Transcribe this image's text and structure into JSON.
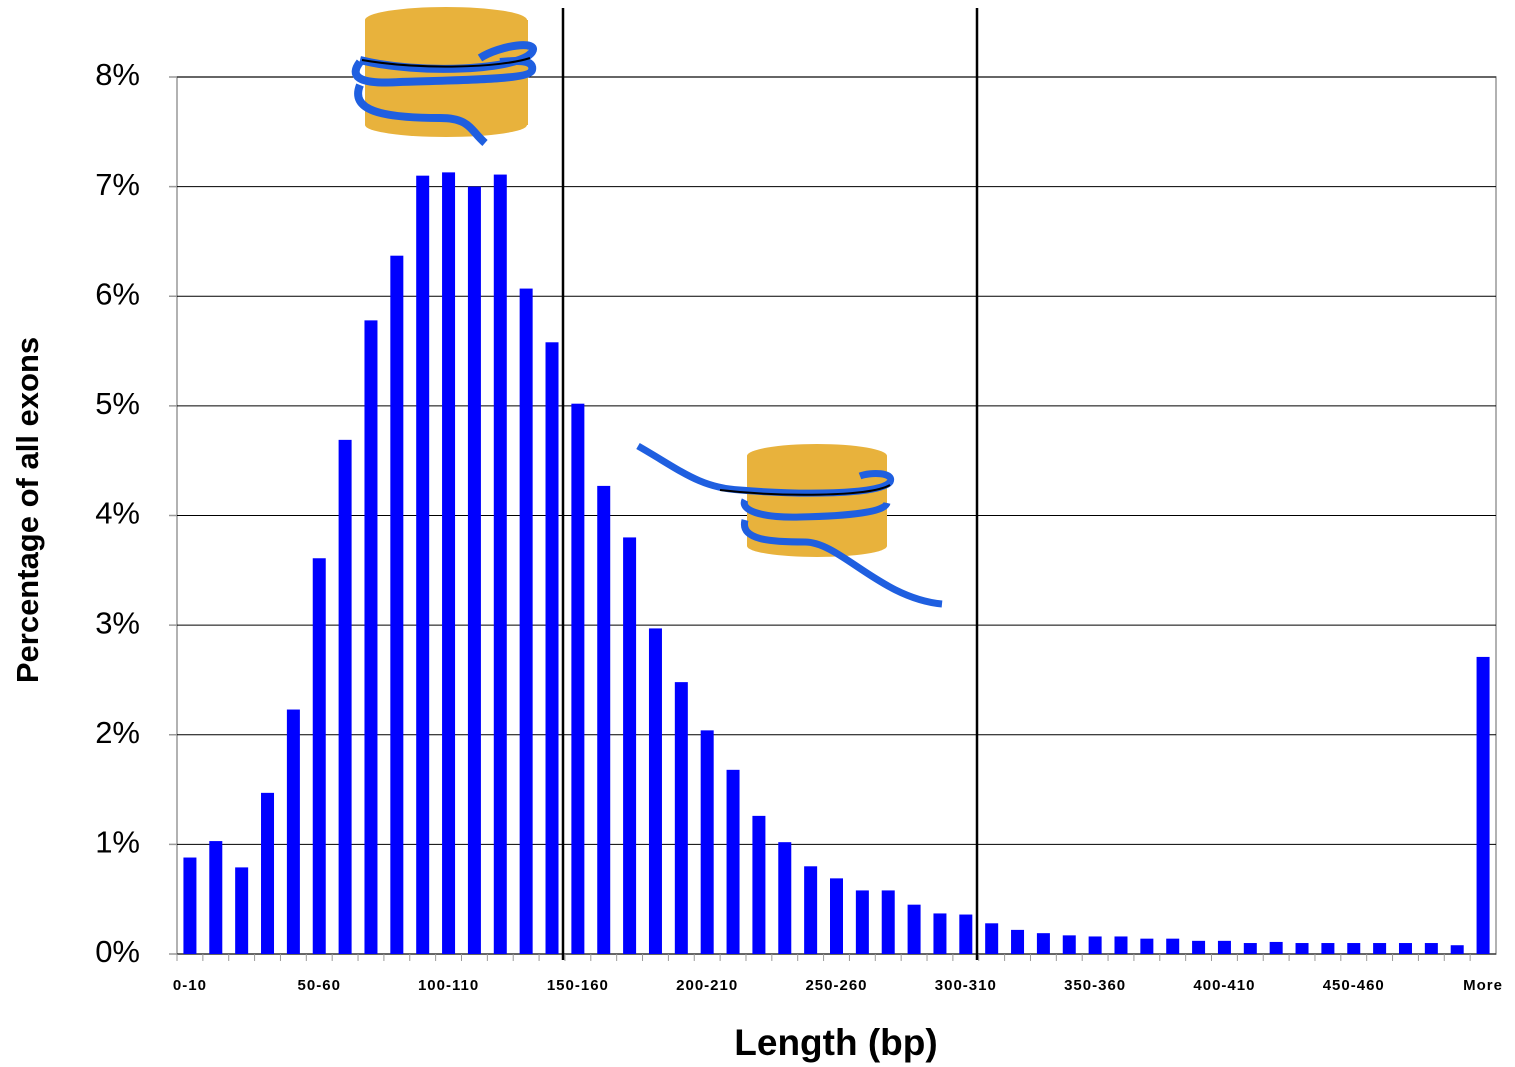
{
  "chart_data": {
    "type": "bar",
    "x_label": "Length (bp)",
    "y_label": "Percentage of all exons",
    "categories": [
      "0-10",
      null,
      null,
      null,
      null,
      "50-60",
      null,
      null,
      null,
      null,
      "100-110",
      null,
      null,
      null,
      null,
      "150-160",
      null,
      null,
      null,
      null,
      "200-210",
      null,
      null,
      null,
      null,
      "250-260",
      null,
      null,
      null,
      null,
      "300-310",
      null,
      null,
      null,
      null,
      "350-360",
      null,
      null,
      null,
      null,
      "400-410",
      null,
      null,
      null,
      null,
      "450-460",
      null,
      null,
      null,
      null,
      "More"
    ],
    "values": [
      0.88,
      1.03,
      0.79,
      1.47,
      2.23,
      3.61,
      4.69,
      5.78,
      6.37,
      7.1,
      7.13,
      7.0,
      7.11,
      6.07,
      5.58,
      5.02,
      4.27,
      3.8,
      2.97,
      2.48,
      2.04,
      1.68,
      1.26,
      1.02,
      0.8,
      0.69,
      0.58,
      0.58,
      0.45,
      0.37,
      0.36,
      0.28,
      0.22,
      0.19,
      0.17,
      0.16,
      0.16,
      0.14,
      0.14,
      0.12,
      0.12,
      0.1,
      0.11,
      0.1,
      0.1,
      0.1,
      0.1,
      0.1,
      0.1,
      0.08,
      2.71
    ],
    "color": "#0000ff",
    "ylim": [
      0,
      8
    ],
    "yticks": [
      {
        "value": 0,
        "label": "0%"
      },
      {
        "value": 1,
        "label": "1%"
      },
      {
        "value": 2,
        "label": "2%"
      },
      {
        "value": 3,
        "label": "3%"
      },
      {
        "value": 4,
        "label": "4%"
      },
      {
        "value": 5,
        "label": "5%"
      },
      {
        "value": 6,
        "label": "6%"
      },
      {
        "value": 7,
        "label": "7%"
      },
      {
        "value": 8,
        "label": "8%"
      }
    ],
    "grid": true
  }
}
